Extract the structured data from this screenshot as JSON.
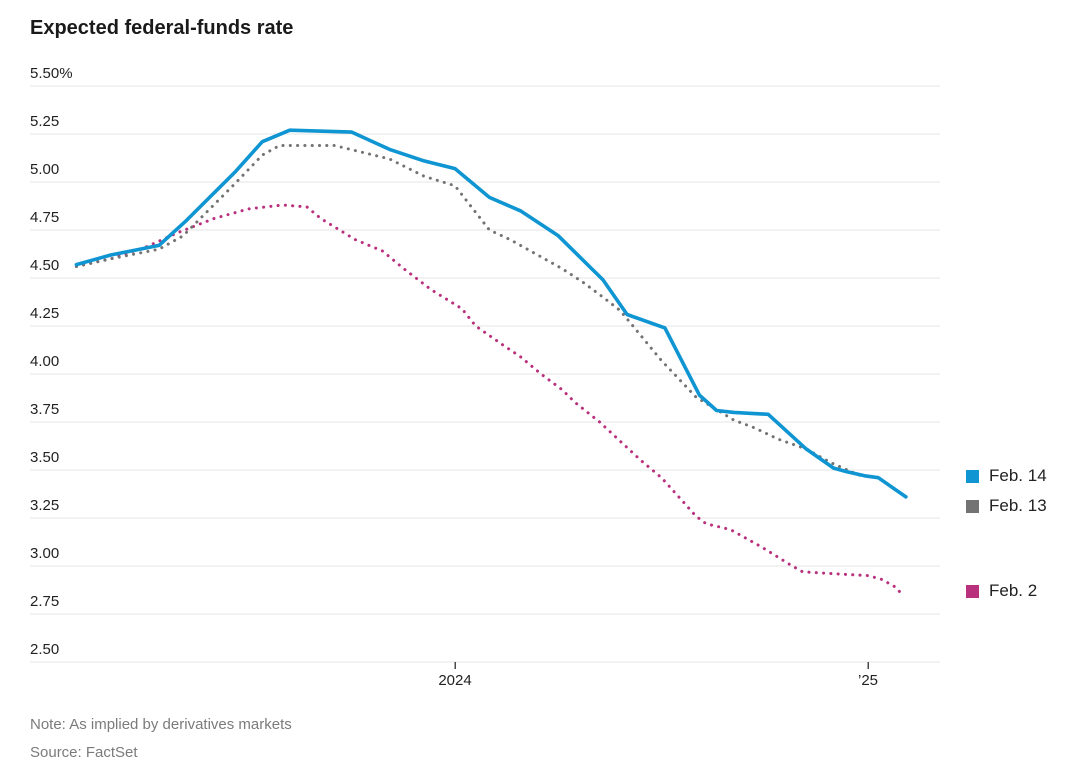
{
  "page": {
    "title": "Expected federal-funds rate",
    "note": "Note: As implied by derivatives markets",
    "source": "Source: FactSet"
  },
  "chart_data": {
    "type": "line",
    "title": "Expected federal-funds rate",
    "xlabel": "",
    "ylabel": "",
    "grid": "horizontal",
    "legend_position": "right",
    "x_unit": "months since Feb 2023",
    "x_ticks": [
      {
        "label": "2024",
        "month": 11
      },
      {
        "label": "’25",
        "month": 23
      }
    ],
    "y_axis": {
      "min": 2.5,
      "max": 5.5,
      "step": 0.25,
      "tick_labels": [
        "5.50%",
        "5.25",
        "5.00",
        "4.75",
        "4.50",
        "4.25",
        "4.00",
        "3.75",
        "3.50",
        "3.25",
        "3.00",
        "2.75",
        "2.50"
      ],
      "tick_values": [
        5.5,
        5.25,
        5.0,
        4.75,
        4.5,
        4.25,
        4.0,
        3.75,
        3.5,
        3.25,
        3.0,
        2.75,
        2.5
      ]
    },
    "series": [
      {
        "name": "Feb. 2",
        "color": "#b9307c",
        "style": "dotted",
        "points": [
          [
            0,
            4.56
          ],
          [
            1,
            4.6
          ],
          [
            2,
            4.66
          ],
          [
            3,
            4.74
          ],
          [
            4,
            4.81
          ],
          [
            5,
            4.86
          ],
          [
            6,
            4.88
          ],
          [
            6.7,
            4.87
          ],
          [
            7.1,
            4.81
          ],
          [
            8.1,
            4.7
          ],
          [
            8.9,
            4.64
          ],
          [
            9.5,
            4.55
          ],
          [
            10.3,
            4.44
          ],
          [
            11.2,
            4.34
          ],
          [
            11.6,
            4.25
          ],
          [
            12.4,
            4.15
          ],
          [
            12.9,
            4.09
          ],
          [
            13.5,
            4.0
          ],
          [
            14.1,
            3.92
          ],
          [
            14.5,
            3.85
          ],
          [
            15.2,
            3.75
          ],
          [
            15.8,
            3.65
          ],
          [
            16.4,
            3.55
          ],
          [
            17,
            3.46
          ],
          [
            17.6,
            3.34
          ],
          [
            18,
            3.26
          ],
          [
            18.3,
            3.22
          ],
          [
            19,
            3.19
          ],
          [
            19.9,
            3.1
          ],
          [
            20.8,
            3.0
          ],
          [
            21.1,
            2.97
          ],
          [
            22,
            2.96
          ],
          [
            23,
            2.95
          ],
          [
            23.4,
            2.93
          ],
          [
            23.8,
            2.89
          ],
          [
            24,
            2.85
          ]
        ]
      },
      {
        "name": "Feb. 13",
        "color": "#737373",
        "style": "dotted",
        "points": [
          [
            0,
            4.56
          ],
          [
            1,
            4.6
          ],
          [
            2.4,
            4.65
          ],
          [
            3.1,
            4.72
          ],
          [
            4.6,
            4.99
          ],
          [
            5.4,
            5.14
          ],
          [
            5.9,
            5.19
          ],
          [
            7.5,
            5.19
          ],
          [
            9.1,
            5.12
          ],
          [
            10.1,
            5.03
          ],
          [
            11,
            4.98
          ],
          [
            12,
            4.75
          ],
          [
            12.6,
            4.7
          ],
          [
            13.1,
            4.65
          ],
          [
            14.1,
            4.55
          ],
          [
            14.7,
            4.48
          ],
          [
            15.3,
            4.4
          ],
          [
            15.8,
            4.33
          ],
          [
            17,
            4.07
          ],
          [
            18,
            3.88
          ],
          [
            19.1,
            3.76
          ],
          [
            19.7,
            3.72
          ],
          [
            20.4,
            3.66
          ],
          [
            21.2,
            3.61
          ],
          [
            21.9,
            3.54
          ],
          [
            22.4,
            3.5
          ],
          [
            22.8,
            3.47
          ]
        ]
      },
      {
        "name": "Feb. 14",
        "color": "#0e95d2",
        "style": "solid",
        "points": [
          [
            0,
            4.57
          ],
          [
            0.6,
            4.6
          ],
          [
            1,
            4.62
          ],
          [
            2.4,
            4.67
          ],
          [
            3.2,
            4.8
          ],
          [
            4.6,
            5.05
          ],
          [
            5.4,
            5.21
          ],
          [
            6.2,
            5.27
          ],
          [
            8,
            5.26
          ],
          [
            9.1,
            5.17
          ],
          [
            10.1,
            5.11
          ],
          [
            11,
            5.07
          ],
          [
            12,
            4.92
          ],
          [
            12.9,
            4.85
          ],
          [
            14,
            4.72
          ],
          [
            15.3,
            4.49
          ],
          [
            16,
            4.31
          ],
          [
            17.1,
            4.24
          ],
          [
            18.1,
            3.89
          ],
          [
            18.6,
            3.81
          ],
          [
            19.1,
            3.8
          ],
          [
            20.1,
            3.79
          ],
          [
            21.2,
            3.61
          ],
          [
            22,
            3.51
          ],
          [
            22.4,
            3.49
          ],
          [
            22.9,
            3.47
          ],
          [
            23.3,
            3.46
          ],
          [
            24.1,
            3.36
          ]
        ]
      }
    ],
    "legend_order": [
      "Feb. 14",
      "Feb. 13",
      "Feb. 2"
    ]
  }
}
